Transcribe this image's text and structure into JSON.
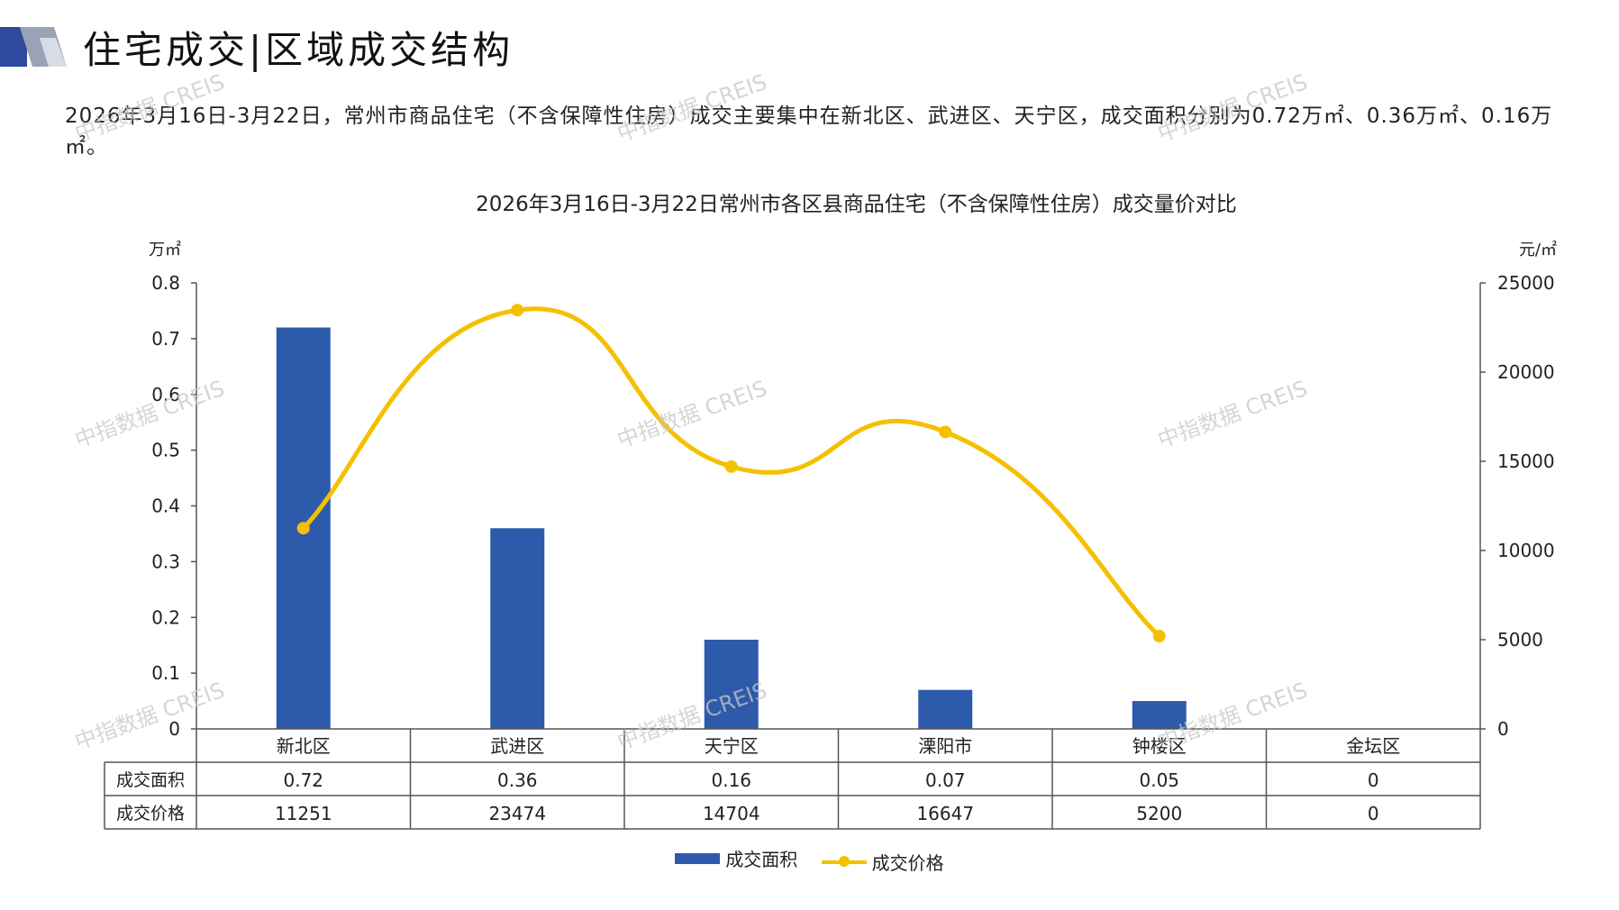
{
  "header": {
    "title": "住宅成交|区域成交结构",
    "accent_color": "#2E4A9E"
  },
  "summary": {
    "text": "2026年3月16日-3月22日，常州市商品住宅（不含保障性住房）成交主要集中在新北区、武进区、天宁区，成交面积分别为0.72万㎡、0.36万㎡、0.16万㎡。"
  },
  "watermarks": [
    "中指数据 CREIS",
    "中指数据 CREIS",
    "中指数据 CREIS",
    "中指数据 CREIS",
    "中指数据 CREIS",
    "中指数据 CREIS",
    "中指数据 CREIS",
    "中指数据 CREIS",
    "中指数据 CREIS"
  ],
  "chart_data": {
    "type": "bar",
    "title": "2026年3月16日-3月22日常州市各区县商品住宅（不含保障性住房）成交量价对比",
    "y_left_unit": "万㎡",
    "y_right_unit": "元/㎡",
    "y_left_ticks": [
      "0.8",
      "0.7",
      "0.6",
      "0.5",
      "0.4",
      "0.3",
      "0.2",
      "0.1",
      "0"
    ],
    "y_right_ticks": [
      "25000",
      "20000",
      "15000",
      "10000",
      "5000",
      "0"
    ],
    "ylim_left": [
      0,
      0.8
    ],
    "ylim_right": [
      0,
      25000
    ],
    "categories": [
      "新北区",
      "武进区",
      "天宁区",
      "溧阳市",
      "钟楼区",
      "金坛区"
    ],
    "series": [
      {
        "name": "成交面积",
        "type": "bar",
        "axis": "left",
        "color": "#2E5AAC",
        "values": [
          0.72,
          0.36,
          0.16,
          0.07,
          0.05,
          0
        ],
        "labels": [
          "0.72",
          "0.36",
          "0.16",
          "0.07",
          "0.05",
          "0"
        ]
      },
      {
        "name": "成交价格",
        "type": "line",
        "axis": "right",
        "color": "#F5C000",
        "values": [
          11251,
          23474,
          14704,
          16647,
          5200,
          0
        ],
        "labels": [
          "11251",
          "23474",
          "14704",
          "16647",
          "5200",
          "0"
        ]
      }
    ],
    "legend_position": "bottom",
    "grid": false
  }
}
